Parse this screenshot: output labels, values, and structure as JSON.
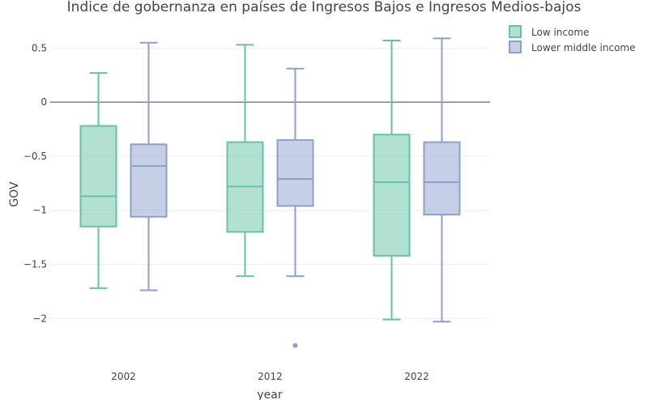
{
  "chart_data": {
    "type": "box",
    "title": "Índice de gobernanza en países de Ingresos Bajos e Ingresos Medios-bajos",
    "xlabel": "year",
    "ylabel": "GOV",
    "categories": [
      "2002",
      "2012",
      "2022"
    ],
    "ylim": [
      -2.35,
      0.72
    ],
    "yticks": [
      0.5,
      0,
      -0.5,
      -1,
      -1.5,
      -2
    ],
    "ytick_labels": [
      "0.5",
      "0",
      "−0.5",
      "−1",
      "−1.5",
      "−2"
    ],
    "grid": true,
    "zero_line": true,
    "legend": "top-right",
    "series": [
      {
        "name": "Low income",
        "color": "#66c2a5",
        "boxes": [
          {
            "category": "2002",
            "min": -1.72,
            "q1": -1.15,
            "median": -0.87,
            "q3": -0.22,
            "max": 0.27,
            "outliers": []
          },
          {
            "category": "2012",
            "min": -1.61,
            "q1": -1.2,
            "median": -0.78,
            "q3": -0.37,
            "max": 0.53,
            "outliers": []
          },
          {
            "category": "2022",
            "min": -2.01,
            "q1": -1.42,
            "median": -0.74,
            "q3": -0.3,
            "max": 0.57,
            "outliers": []
          }
        ]
      },
      {
        "name": "Lower middle income",
        "color": "#8da0cb",
        "boxes": [
          {
            "category": "2002",
            "min": -1.74,
            "q1": -1.06,
            "median": -0.59,
            "q3": -0.39,
            "max": 0.55,
            "outliers": []
          },
          {
            "category": "2012",
            "min": -1.61,
            "q1": -0.96,
            "median": -0.71,
            "q3": -0.35,
            "max": 0.31,
            "outliers": [
              -2.25
            ]
          },
          {
            "category": "2022",
            "min": -2.03,
            "q1": -1.04,
            "median": -0.74,
            "q3": -0.37,
            "max": 0.59,
            "outliers": []
          }
        ]
      }
    ]
  }
}
